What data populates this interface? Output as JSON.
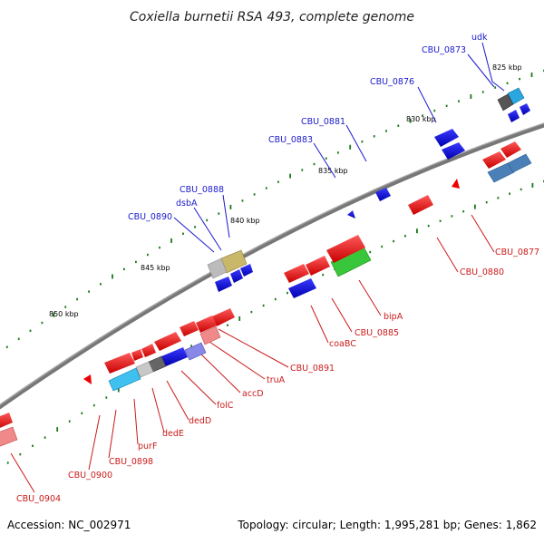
{
  "title": "Coxiella burnetii RSA 493, complete genome",
  "footer": {
    "accession": "Accession: NC_002971",
    "summary": "Topology: circular; Length: 1,995,281 bp; Genes: 1,862"
  },
  "colors": {
    "backbone": "#7a7a7a",
    "forward_label": "#1a1acc",
    "reverse_label": "#cc1a1a",
    "tick": "#1a7a1a"
  },
  "scale_labels": [
    "825 kbp",
    "830 kbp",
    "835 kbp",
    "840 kbp",
    "845 kbp",
    "850 kbp"
  ],
  "forward_genes": [
    "udk",
    "CBU_0873",
    "CBU_0876",
    "CBU_0881",
    "CBU_0883",
    "CBU_0888",
    "dsbA",
    "CBU_0890"
  ],
  "reverse_genes": [
    "CBU_0877",
    "CBU_0880",
    "bipA",
    "CBU_0885",
    "coaBC",
    "CBU_0891",
    "truA",
    "accD",
    "folC",
    "dedD",
    "dedE",
    "purF",
    "CBU_0898",
    "CBU_0900",
    "CBU_0904"
  ]
}
